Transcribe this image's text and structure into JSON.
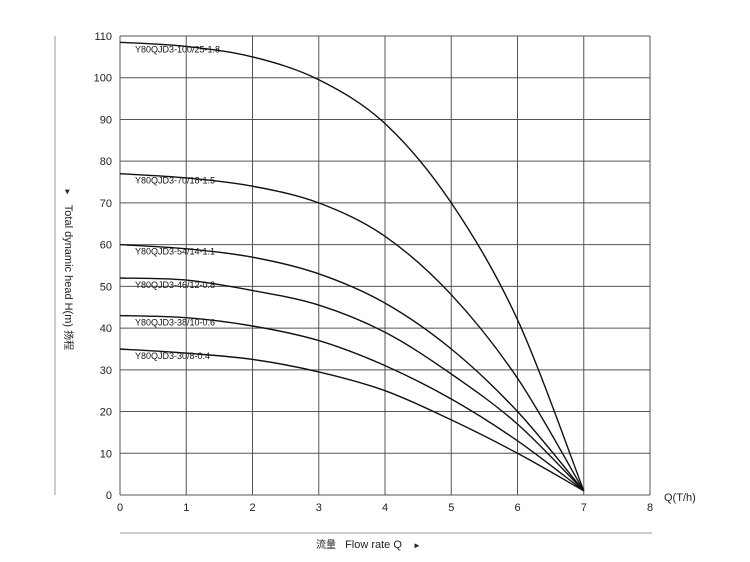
{
  "chart_data": {
    "type": "line",
    "x_axis": {
      "label_cn": "流量",
      "label": "Flow rate Q",
      "arrow": "►",
      "unit_label": "Q(T/h)",
      "xlim": [
        0,
        8
      ],
      "ticks": [
        "0",
        "1",
        "2",
        "3",
        "4",
        "5",
        "6",
        "7",
        "8"
      ]
    },
    "y_axis": {
      "arrow": "►",
      "label": "Total dynamic head H(m)",
      "label_cn": "扬程",
      "ylim": [
        0,
        110
      ],
      "ticks": [
        "0",
        "10",
        "20",
        "30",
        "40",
        "50",
        "60",
        "70",
        "80",
        "90",
        "100",
        "110"
      ]
    },
    "grid": true,
    "series": [
      {
        "name": "Y80QJD3-100/25-1.8",
        "color": "#111111",
        "points": [
          [
            0,
            108.5
          ],
          [
            1,
            107.5
          ],
          [
            2,
            105
          ],
          [
            3,
            99.5
          ],
          [
            4,
            89
          ],
          [
            5,
            70
          ],
          [
            6,
            42
          ],
          [
            7,
            1
          ]
        ]
      },
      {
        "name": "Y80QJD3-70/18-1.5",
        "color": "#111111",
        "points": [
          [
            0,
            77
          ],
          [
            1,
            76
          ],
          [
            2,
            74
          ],
          [
            3,
            70
          ],
          [
            4,
            62
          ],
          [
            5,
            48
          ],
          [
            6,
            28
          ],
          [
            7,
            1
          ]
        ]
      },
      {
        "name": "Y80QJD3-54/14-1.1",
        "color": "#111111",
        "points": [
          [
            0,
            60
          ],
          [
            1,
            59
          ],
          [
            2,
            57
          ],
          [
            3,
            53
          ],
          [
            4,
            46
          ],
          [
            5,
            35
          ],
          [
            6,
            20
          ],
          [
            7,
            1
          ]
        ]
      },
      {
        "name": "Y80QJD3-46/12-0.8",
        "color": "#111111",
        "points": [
          [
            0,
            52
          ],
          [
            1,
            51.5
          ],
          [
            2,
            49
          ],
          [
            3,
            45.5
          ],
          [
            4,
            39
          ],
          [
            5,
            29
          ],
          [
            6,
            17
          ],
          [
            7,
            1
          ]
        ]
      },
      {
        "name": "Y80QJD3-38/10-0.6",
        "color": "#111111",
        "points": [
          [
            0,
            43
          ],
          [
            1,
            42.5
          ],
          [
            2,
            40.5
          ],
          [
            3,
            37
          ],
          [
            4,
            31
          ],
          [
            5,
            23
          ],
          [
            6,
            13
          ],
          [
            7,
            1
          ]
        ]
      },
      {
        "name": "Y80QJD3-30/8-0.4",
        "color": "#111111",
        "points": [
          [
            0,
            35
          ],
          [
            1,
            34
          ],
          [
            2,
            32.5
          ],
          [
            3,
            29.5
          ],
          [
            4,
            25
          ],
          [
            5,
            18
          ],
          [
            6,
            10
          ],
          [
            7,
            1
          ]
        ]
      }
    ]
  }
}
